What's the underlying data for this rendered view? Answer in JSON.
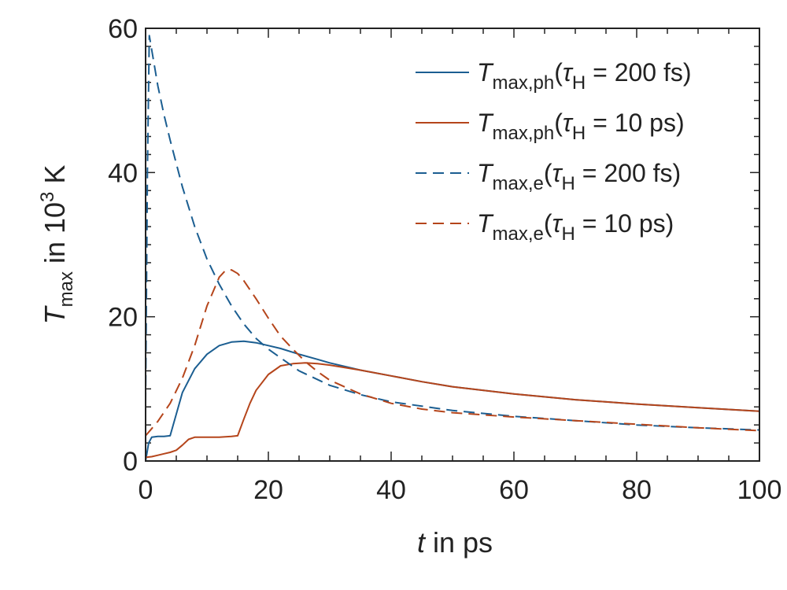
{
  "chart_data": {
    "type": "line",
    "xlabel": {
      "var": "t",
      "rest": " in ps"
    },
    "ylabel": {
      "var": "T",
      "sub": "max",
      "rest": " in 10",
      "sup": "3",
      "unit": " K"
    },
    "xlim": [
      0,
      100
    ],
    "ylim": [
      0,
      60
    ],
    "xticks": [
      0,
      20,
      40,
      60,
      80,
      100
    ],
    "yticks": [
      0,
      20,
      40,
      60
    ],
    "grid": false,
    "legend_position": "top-right",
    "colors": {
      "blue": "#1b5e91",
      "red": "#b5451b",
      "axis": "#222222"
    },
    "series": [
      {
        "var": "T",
        "sub": "max,ph",
        "tau": "τ",
        "tau_sub": "H",
        "value": " = 200 fs",
        "paren_open": "(",
        "paren_close": ")",
        "color": "#1b5e91",
        "dash": "solid",
        "x": [
          0,
          0.5,
          1,
          2,
          3,
          4,
          5,
          6,
          8,
          10,
          12,
          14,
          16,
          18,
          20,
          22,
          25,
          28,
          30,
          35,
          40,
          45,
          50,
          60,
          70,
          80,
          90,
          100
        ],
        "y": [
          0,
          2.5,
          3.3,
          3.4,
          3.4,
          3.5,
          6.5,
          9.5,
          12.8,
          14.8,
          16.0,
          16.5,
          16.6,
          16.4,
          16.0,
          15.6,
          14.8,
          14.1,
          13.6,
          12.6,
          11.8,
          11.0,
          10.3,
          9.3,
          8.5,
          7.9,
          7.4,
          6.9
        ]
      },
      {
        "var": "T",
        "sub": "max,ph",
        "tau": "τ",
        "tau_sub": "H",
        "value": " = 10 ps",
        "paren_open": "(",
        "paren_close": ")",
        "color": "#b5451b",
        "dash": "solid",
        "x": [
          0,
          1,
          2,
          3,
          4,
          5,
          6,
          7,
          8,
          10,
          12,
          14,
          15,
          16,
          17,
          18,
          20,
          22,
          24,
          26,
          28,
          30,
          35,
          40,
          45,
          50,
          60,
          70,
          80,
          90,
          100
        ],
        "y": [
          0.5,
          0.6,
          0.8,
          1.0,
          1.2,
          1.5,
          2.2,
          3.0,
          3.3,
          3.3,
          3.3,
          3.4,
          3.5,
          5.8,
          8.0,
          9.8,
          12.0,
          13.2,
          13.5,
          13.6,
          13.5,
          13.3,
          12.6,
          11.8,
          11.0,
          10.3,
          9.3,
          8.5,
          7.9,
          7.4,
          6.9
        ]
      },
      {
        "var": "T",
        "sub": "max,e",
        "tau": "τ",
        "tau_sub": "H",
        "value": " = 200 fs",
        "paren_open": "(",
        "paren_close": ")",
        "color": "#1b5e91",
        "dash": "dashed",
        "x": [
          0,
          0.3,
          0.6,
          1,
          2,
          3,
          4,
          6,
          8,
          10,
          12,
          14,
          16,
          18,
          20,
          25,
          30,
          35,
          40,
          50,
          60,
          70,
          80,
          90,
          100
        ],
        "y": [
          8,
          40,
          59,
          57,
          52,
          48,
          44.5,
          38,
          32.5,
          28,
          24.5,
          21.5,
          19,
          17,
          15.5,
          12.5,
          10.5,
          9.2,
          8.2,
          7.0,
          6.2,
          5.6,
          5.0,
          4.6,
          4.3
        ]
      },
      {
        "var": "T",
        "sub": "max,e",
        "tau": "τ",
        "tau_sub": "H",
        "value": " = 10 ps",
        "paren_open": "(",
        "paren_close": ")",
        "color": "#b5451b",
        "dash": "dashed",
        "x": [
          0,
          1,
          2,
          4,
          6,
          8,
          10,
          12,
          13,
          14,
          15,
          16,
          18,
          20,
          22,
          24,
          26,
          28,
          30,
          35,
          40,
          45,
          50,
          60,
          70,
          80,
          90,
          100
        ],
        "y": [
          3.5,
          4.5,
          5.5,
          8,
          11.5,
          16,
          21.5,
          25.5,
          26.4,
          26.5,
          26.0,
          25.0,
          22.5,
          19.8,
          17.3,
          15.5,
          13.8,
          12.4,
          11.2,
          9.3,
          8.0,
          7.2,
          6.7,
          6.1,
          5.6,
          5.1,
          4.6,
          4.2
        ]
      }
    ]
  }
}
